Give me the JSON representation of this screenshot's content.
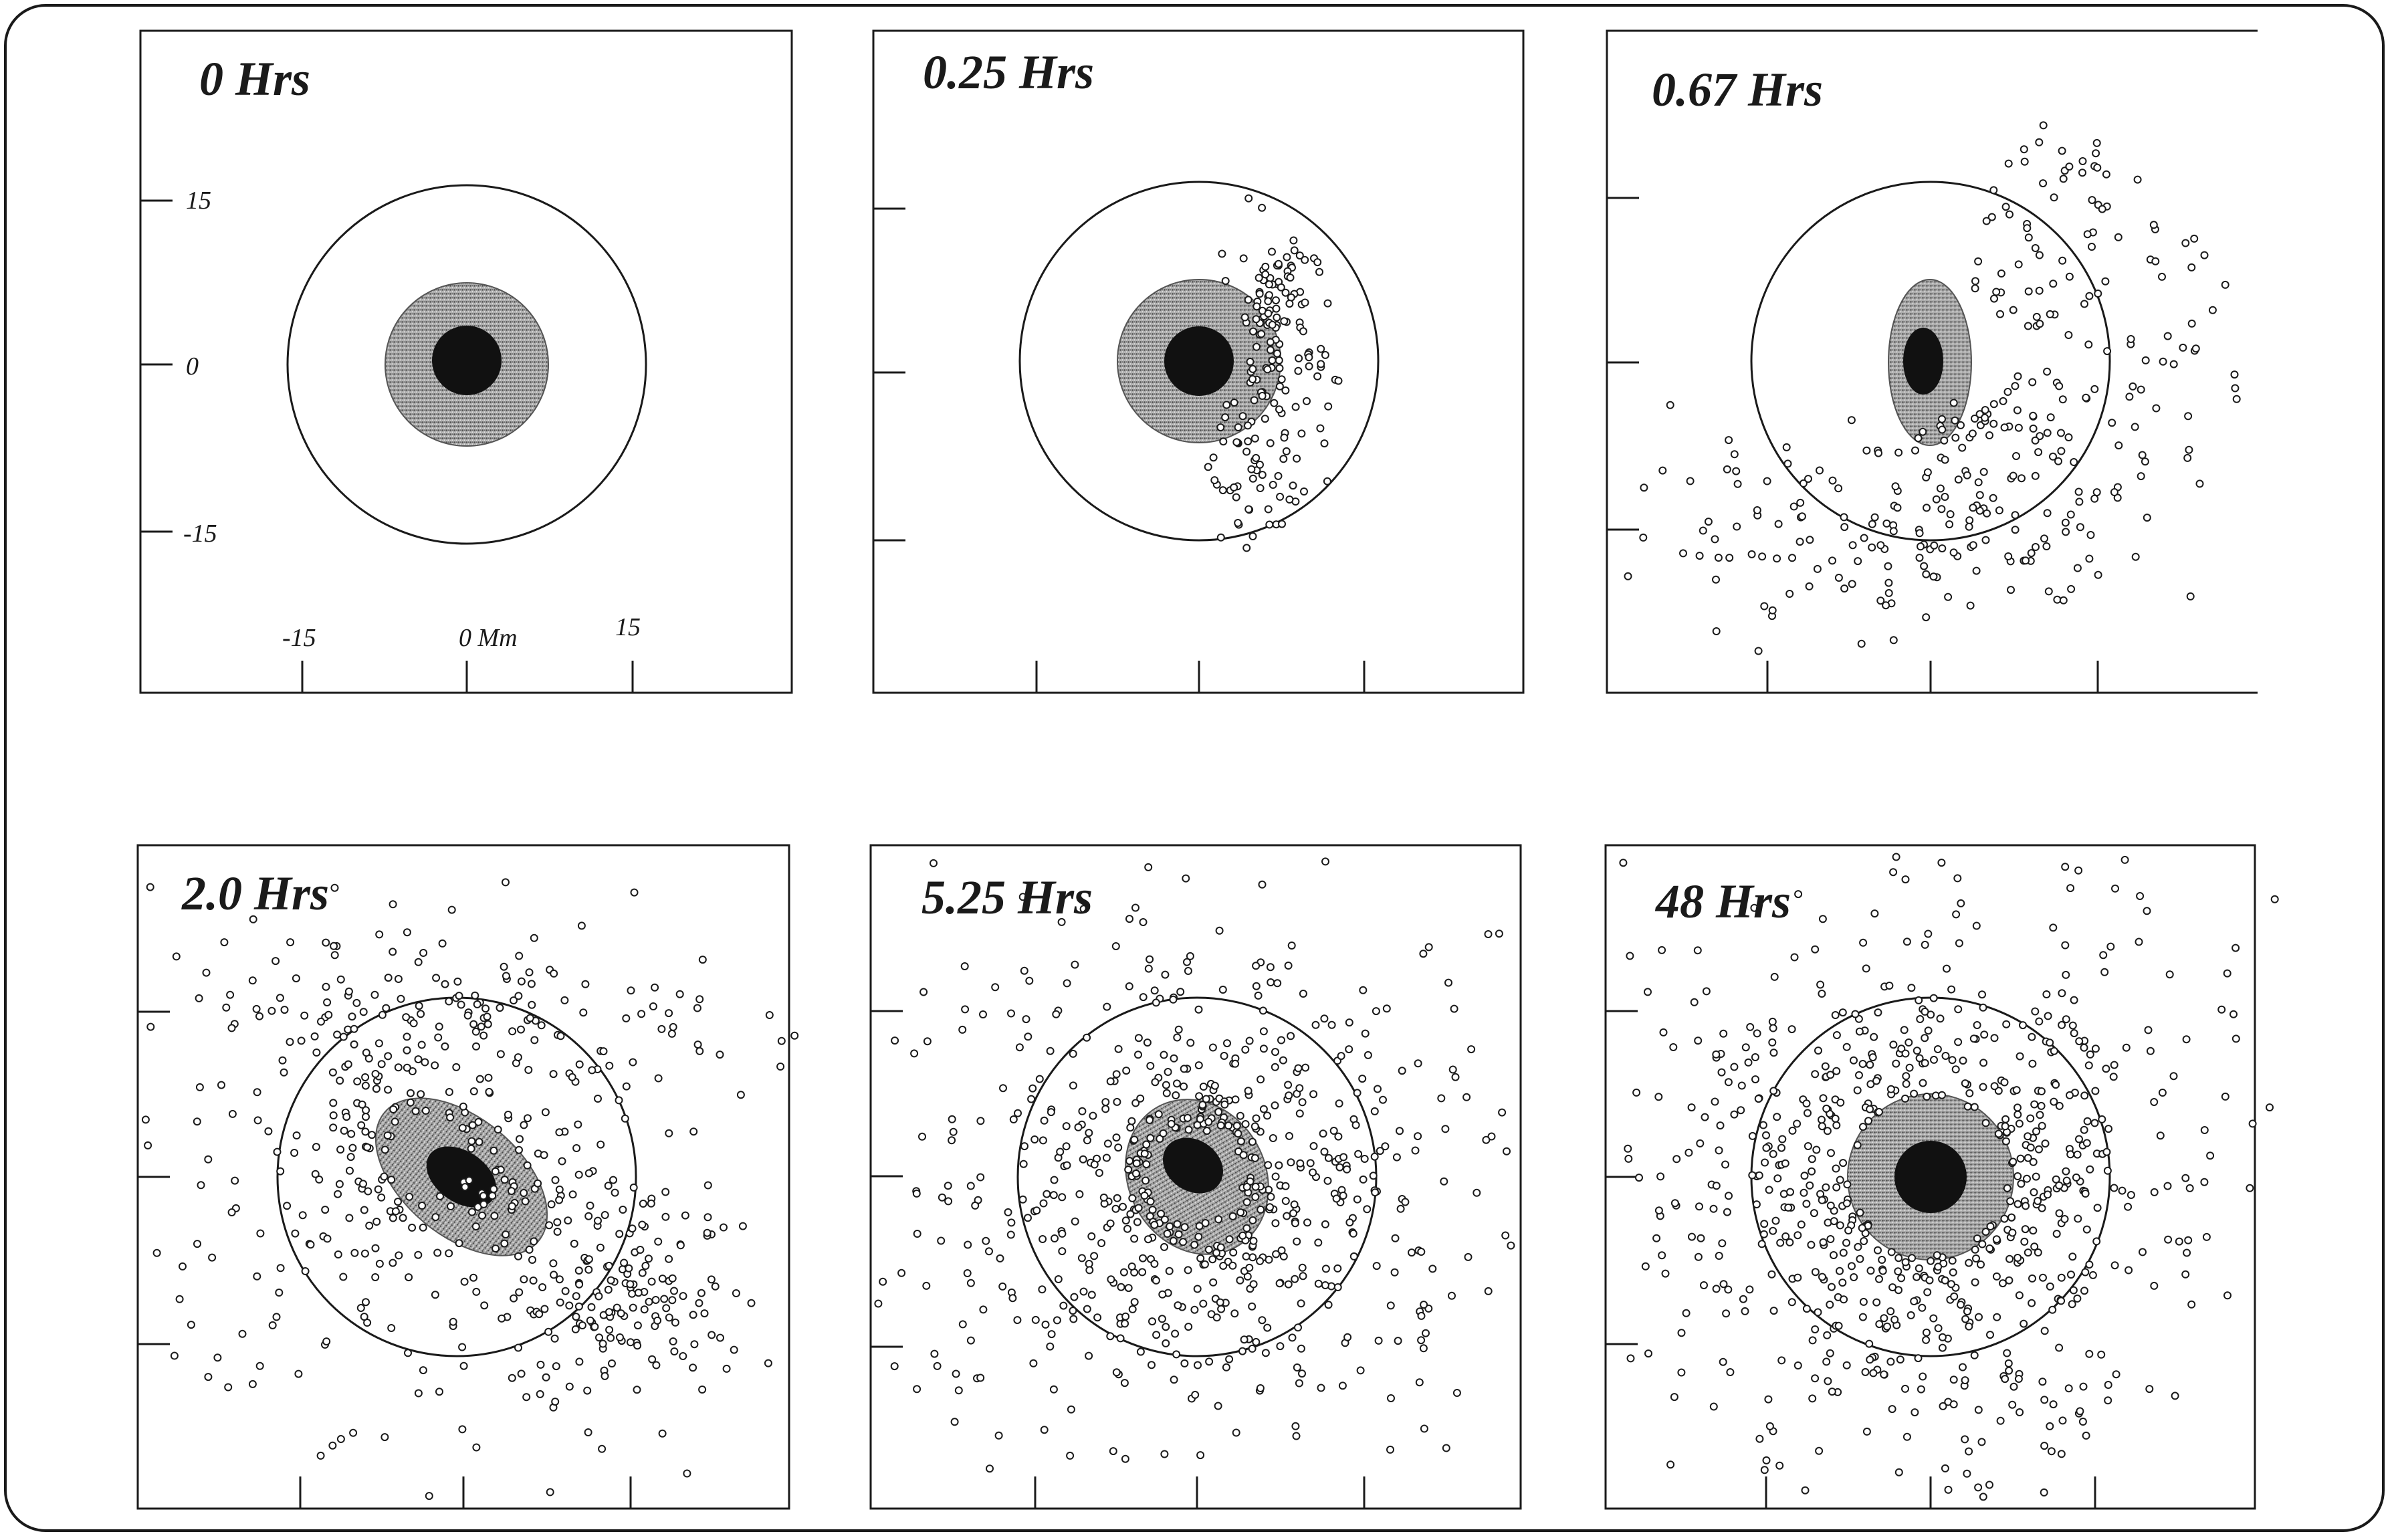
{
  "figure": {
    "panels": [
      {
        "id": "p1",
        "title": "0 Hrs",
        "scatter_count": 0,
        "spread": 0
      },
      {
        "id": "p2",
        "title": "0.25 Hrs",
        "scatter_count": 180,
        "spread": 1
      },
      {
        "id": "p3",
        "title": "0.67 Hrs",
        "scatter_count": 330,
        "spread": 2
      },
      {
        "id": "p4",
        "title": "2.0 Hrs",
        "scatter_count": 620,
        "spread": 3
      },
      {
        "id": "p5",
        "title": "5.25 Hrs",
        "scatter_count": 700,
        "spread": 4
      },
      {
        "id": "p6",
        "title": "48 Hrs",
        "scatter_count": 760,
        "spread": 5
      }
    ],
    "y_tick_labels": [
      "15",
      "0",
      "-15"
    ],
    "x_tick_labels": [
      "-15",
      "0 Mm",
      "15"
    ],
    "colors": {
      "ink": "#1a1a1a",
      "penumbra": "#8c8c8c",
      "umbra": "#111111",
      "marker_fill": "#ffffff"
    }
  }
}
